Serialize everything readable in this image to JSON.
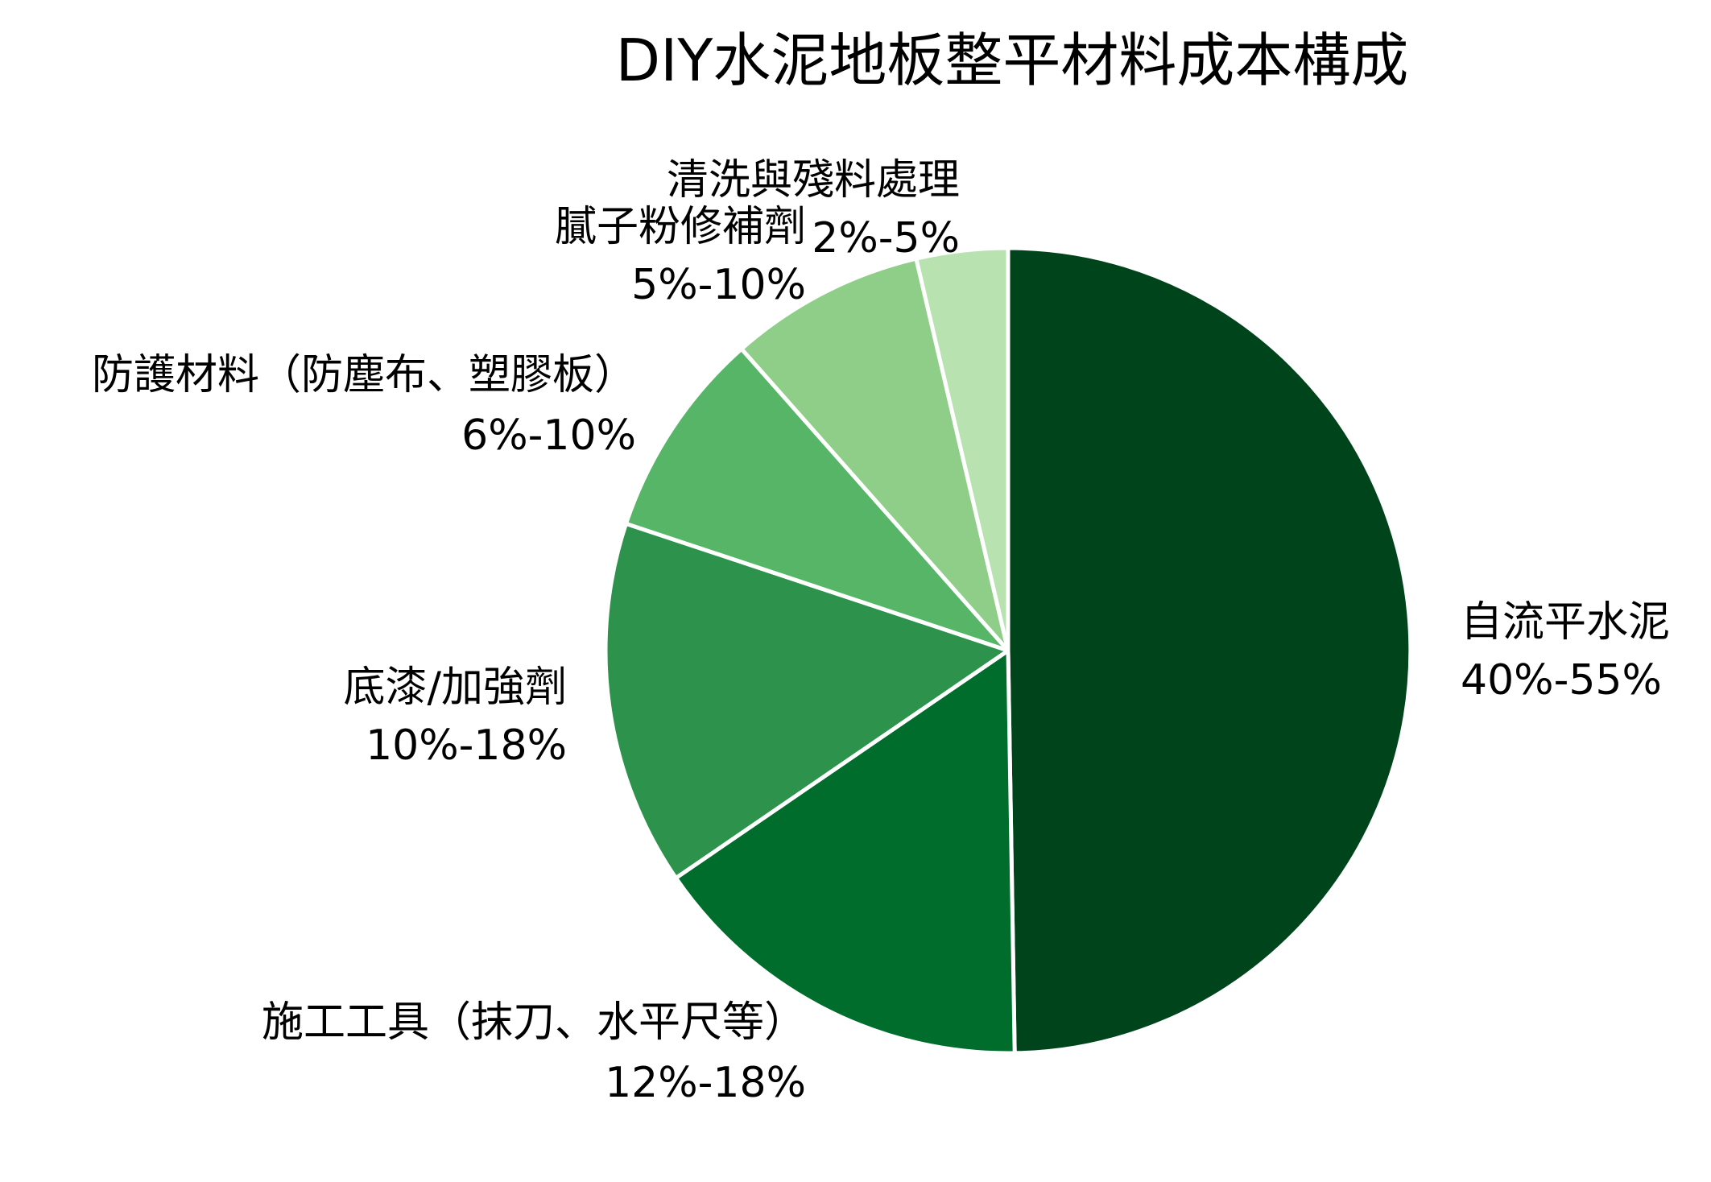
{
  "chart_data": {
    "type": "pie",
    "title": "DIY水泥地板整平材料成本構成",
    "start_angle_deg": 90,
    "direction": "clockwise",
    "categories": [
      "自流平水泥",
      "施工工具（抹刀、水平尺等）",
      "底漆/加強劑",
      "防護材料（防塵布、塑膠板）",
      "膩子粉修補劑",
      "清洗與殘料處理"
    ],
    "range_labels": [
      "40%-55%",
      "12%-18%",
      "10%-18%",
      "6%-10%",
      "5%-10%",
      "2%-5%"
    ],
    "values": [
      47.5,
      15,
      14,
      8,
      7.5,
      3.5
    ],
    "colors": [
      "#00441b",
      "#006d2c",
      "#2d924b",
      "#56b567",
      "#8fce88",
      "#b8e3b1"
    ],
    "legend": "none (labels placed next to slices)"
  },
  "title": "DIY水泥地板整平材料成本構成",
  "slices": [
    {
      "name": "自流平水泥",
      "range": "40%-55%"
    },
    {
      "name": "施工工具（抹刀、水平尺等）",
      "range": "12%-18%"
    },
    {
      "name": "底漆/加強劑",
      "range": "10%-18%"
    },
    {
      "name": "防護材料（防塵布、塑膠板）",
      "range": "6%-10%"
    },
    {
      "name": "膩子粉修補劑",
      "range": "5%-10%"
    },
    {
      "name": "清洗與殘料處理",
      "range": "2%-5%"
    }
  ]
}
